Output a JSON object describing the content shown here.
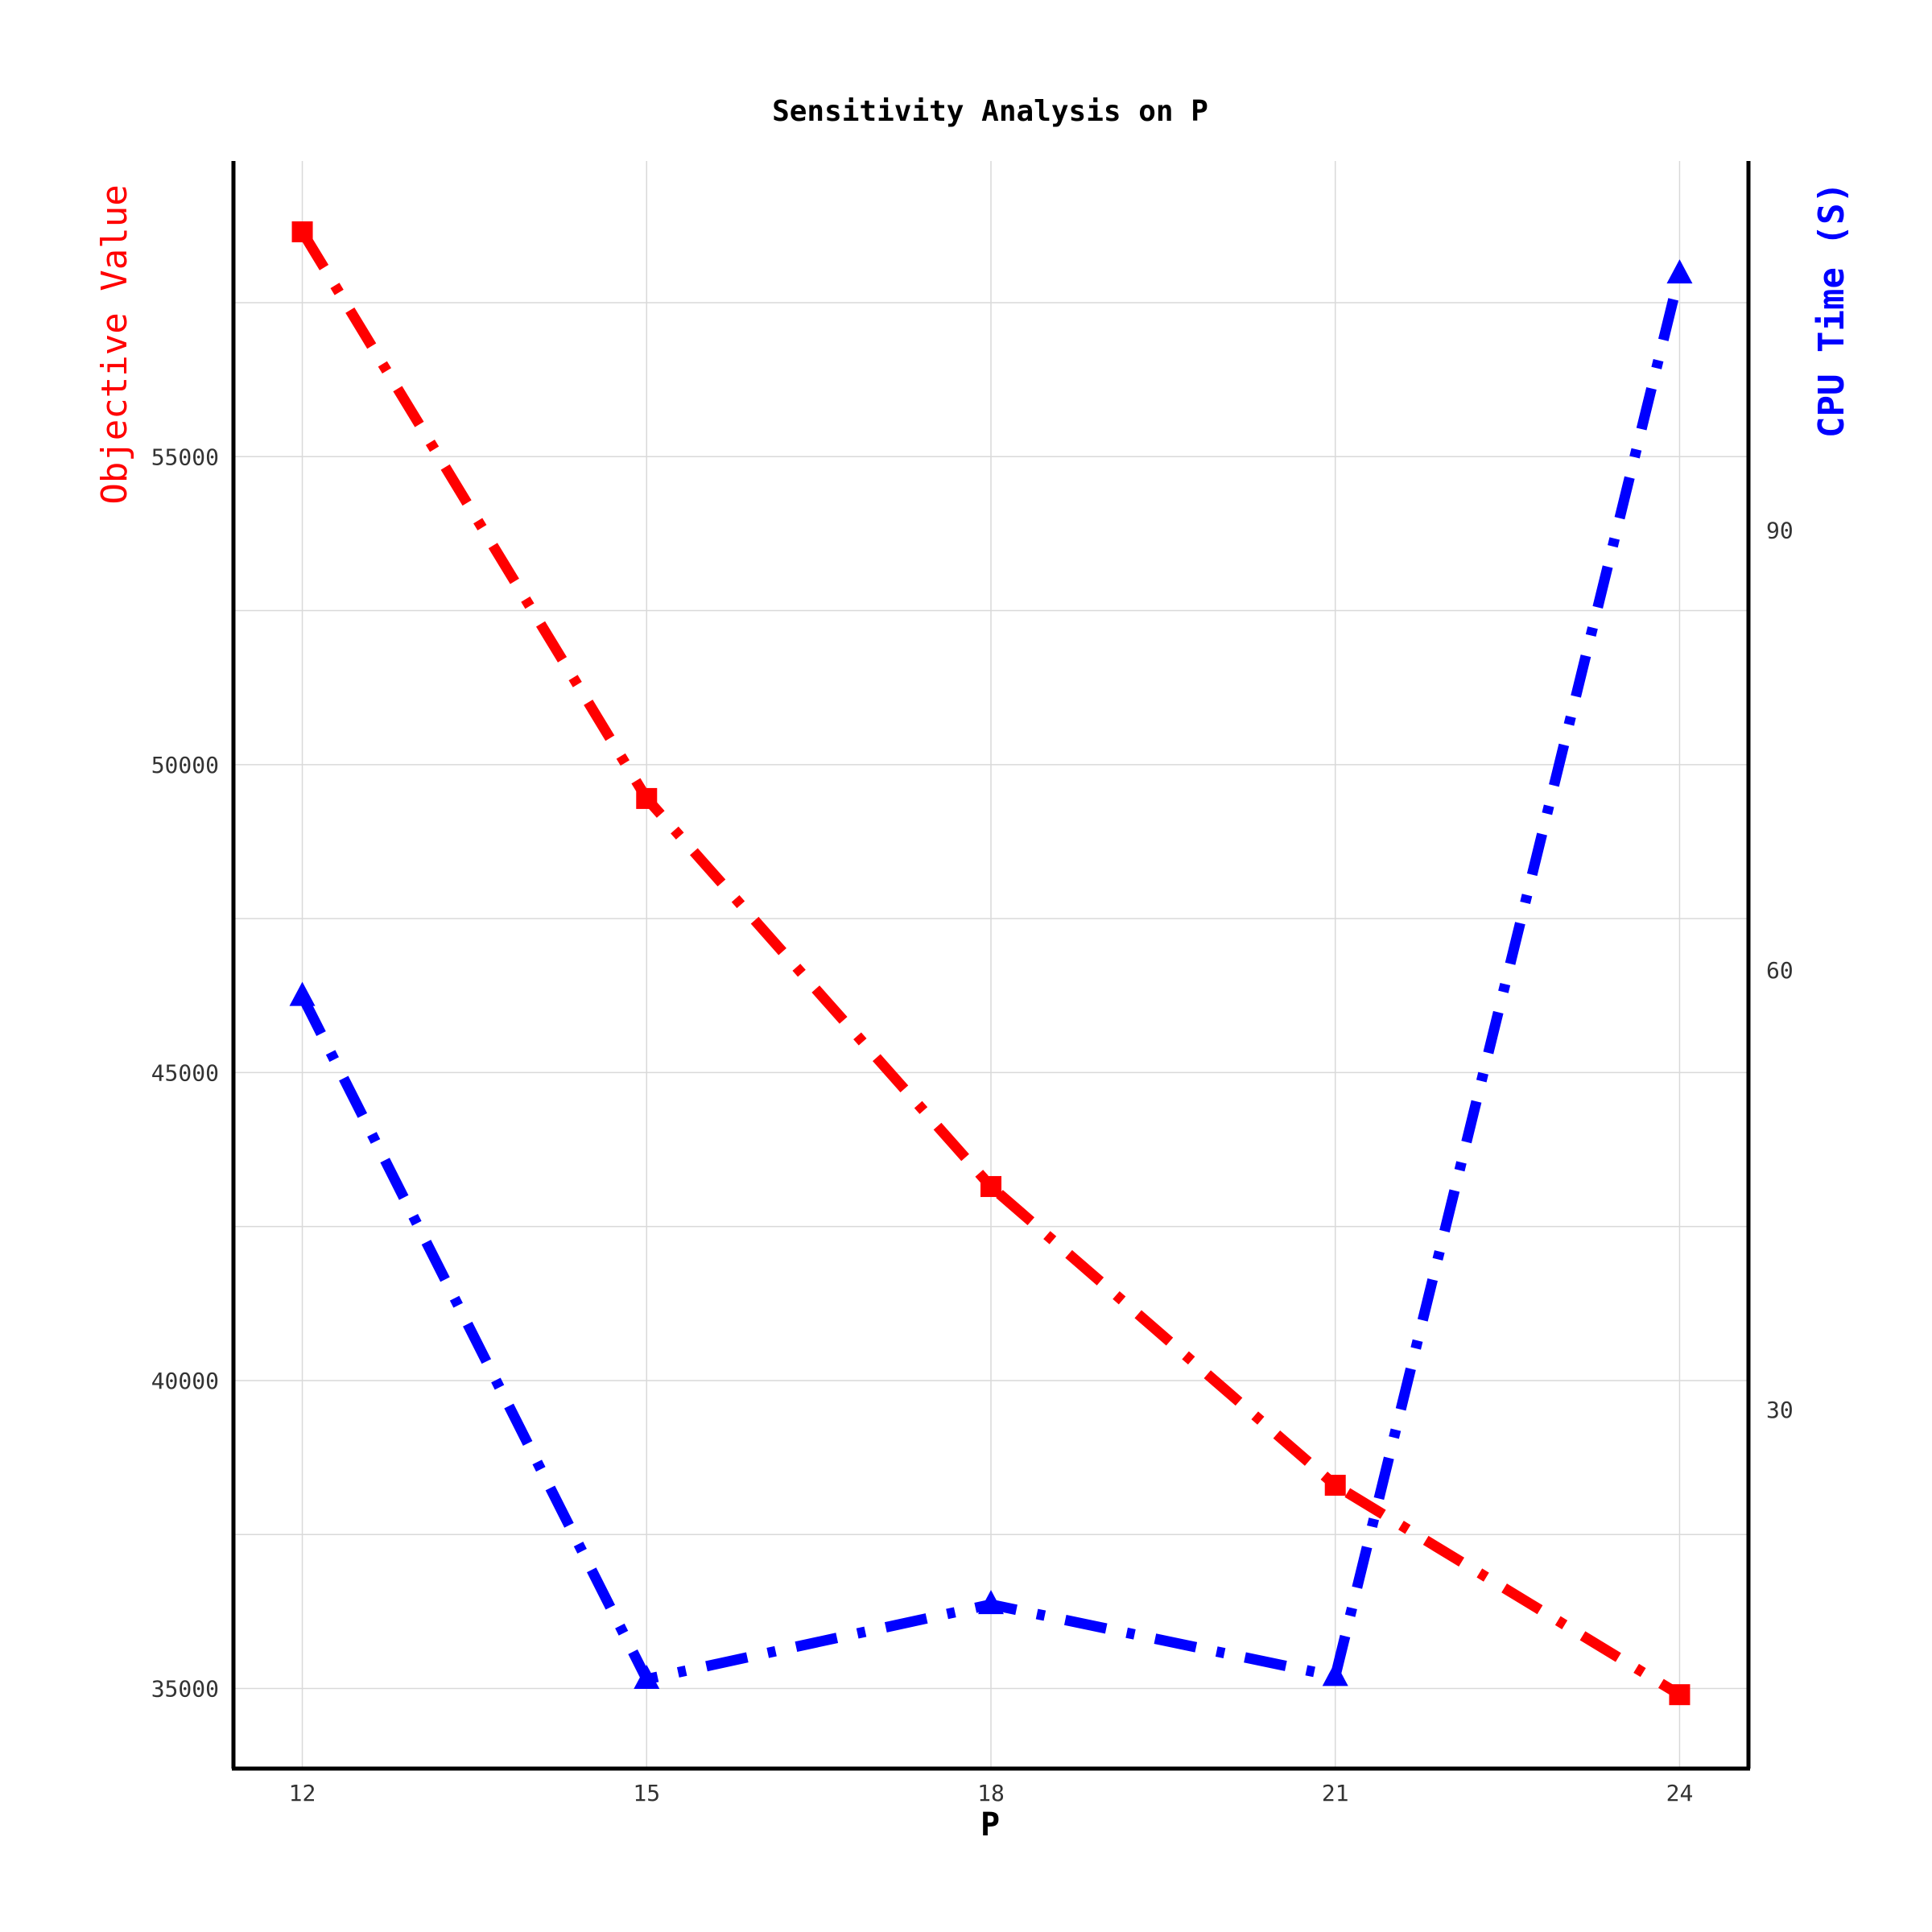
{
  "chart_data": {
    "type": "line",
    "title": "Sensitivity Analysis on P",
    "xlabel": "P",
    "ylabel_left": "Objective Value",
    "ylabel_right": "CPU Time (S)",
    "x": [
      12,
      15,
      18,
      21,
      24
    ],
    "x_ticks": [
      "12",
      "15",
      "18",
      "21",
      "24"
    ],
    "xlim": [
      11.4,
      24.6
    ],
    "y_left_ticks": [
      "35000",
      "40000",
      "45000",
      "50000",
      "55000"
    ],
    "y_left_tick_values": [
      35000,
      40000,
      45000,
      50000,
      55000
    ],
    "ylim_left": [
      33700,
      59800
    ],
    "y_right_ticks": [
      "30",
      "60",
      "90"
    ],
    "y_right_tick_values": [
      30,
      60,
      90
    ],
    "ylim_right": [
      5.5,
      115.2
    ],
    "grid": true,
    "series": [
      {
        "axis": "left",
        "color": "#ff0000",
        "marker": "square",
        "line_style": "dashdot",
        "values": [
          58650,
          49450,
          43150,
          38300,
          34900
        ]
      },
      {
        "axis": "right",
        "color": "#0000ff",
        "marker": "triangle",
        "line_style": "dashdot",
        "values": [
          58.2,
          11.6,
          16.7,
          11.8,
          107.5
        ]
      }
    ]
  }
}
